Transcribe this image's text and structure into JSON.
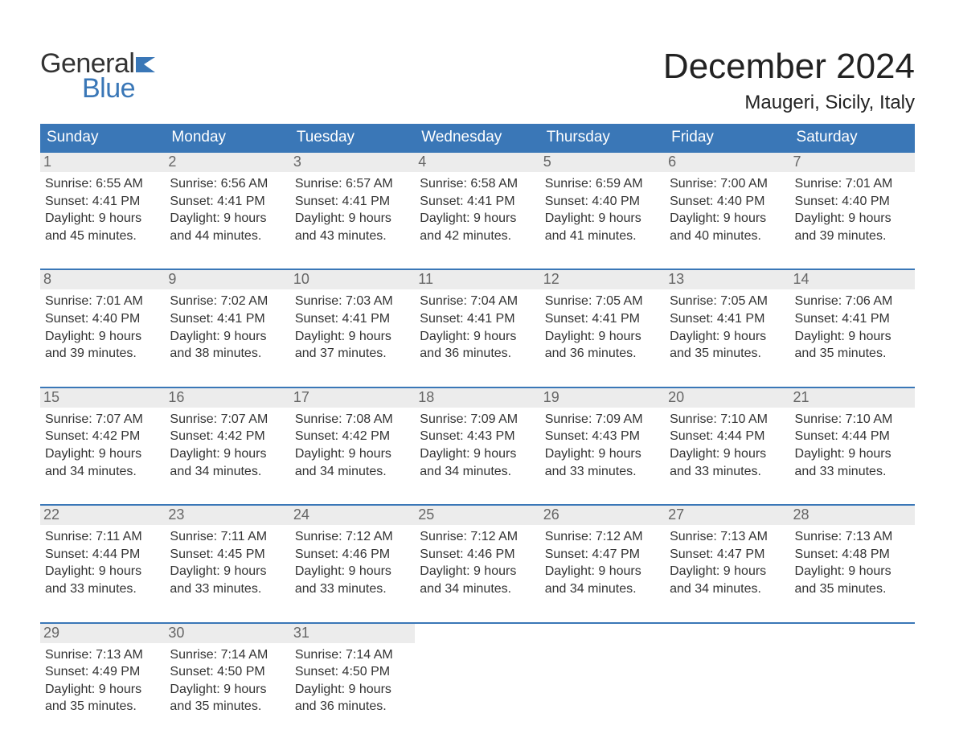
{
  "brand": {
    "word1": "General",
    "word2": "Blue",
    "word1_color": "#333333",
    "word2_color": "#3a77b7",
    "flag_color": "#3a77b7",
    "fontsize": 34
  },
  "title": {
    "month": "December 2024",
    "location": "Maugeri, Sicily, Italy",
    "month_fontsize": 44,
    "location_fontsize": 24,
    "text_color": "#222222"
  },
  "calendar": {
    "header_bg": "#3a77b7",
    "header_text_color": "#ffffff",
    "row_border_color": "#3a77b7",
    "daynum_bg": "#ececec",
    "daynum_color": "#666666",
    "body_text_color": "#333333",
    "background_color": "#ffffff",
    "body_fontsize": 16,
    "daynum_fontsize": 18,
    "header_fontsize": 19,
    "days_of_week": [
      "Sunday",
      "Monday",
      "Tuesday",
      "Wednesday",
      "Thursday",
      "Friday",
      "Saturday"
    ],
    "weeks": [
      [
        {
          "n": "1",
          "sunrise": "Sunrise: 6:55 AM",
          "sunset": "Sunset: 4:41 PM",
          "d1": "Daylight: 9 hours",
          "d2": "and 45 minutes."
        },
        {
          "n": "2",
          "sunrise": "Sunrise: 6:56 AM",
          "sunset": "Sunset: 4:41 PM",
          "d1": "Daylight: 9 hours",
          "d2": "and 44 minutes."
        },
        {
          "n": "3",
          "sunrise": "Sunrise: 6:57 AM",
          "sunset": "Sunset: 4:41 PM",
          "d1": "Daylight: 9 hours",
          "d2": "and 43 minutes."
        },
        {
          "n": "4",
          "sunrise": "Sunrise: 6:58 AM",
          "sunset": "Sunset: 4:41 PM",
          "d1": "Daylight: 9 hours",
          "d2": "and 42 minutes."
        },
        {
          "n": "5",
          "sunrise": "Sunrise: 6:59 AM",
          "sunset": "Sunset: 4:40 PM",
          "d1": "Daylight: 9 hours",
          "d2": "and 41 minutes."
        },
        {
          "n": "6",
          "sunrise": "Sunrise: 7:00 AM",
          "sunset": "Sunset: 4:40 PM",
          "d1": "Daylight: 9 hours",
          "d2": "and 40 minutes."
        },
        {
          "n": "7",
          "sunrise": "Sunrise: 7:01 AM",
          "sunset": "Sunset: 4:40 PM",
          "d1": "Daylight: 9 hours",
          "d2": "and 39 minutes."
        }
      ],
      [
        {
          "n": "8",
          "sunrise": "Sunrise: 7:01 AM",
          "sunset": "Sunset: 4:40 PM",
          "d1": "Daylight: 9 hours",
          "d2": "and 39 minutes."
        },
        {
          "n": "9",
          "sunrise": "Sunrise: 7:02 AM",
          "sunset": "Sunset: 4:41 PM",
          "d1": "Daylight: 9 hours",
          "d2": "and 38 minutes."
        },
        {
          "n": "10",
          "sunrise": "Sunrise: 7:03 AM",
          "sunset": "Sunset: 4:41 PM",
          "d1": "Daylight: 9 hours",
          "d2": "and 37 minutes."
        },
        {
          "n": "11",
          "sunrise": "Sunrise: 7:04 AM",
          "sunset": "Sunset: 4:41 PM",
          "d1": "Daylight: 9 hours",
          "d2": "and 36 minutes."
        },
        {
          "n": "12",
          "sunrise": "Sunrise: 7:05 AM",
          "sunset": "Sunset: 4:41 PM",
          "d1": "Daylight: 9 hours",
          "d2": "and 36 minutes."
        },
        {
          "n": "13",
          "sunrise": "Sunrise: 7:05 AM",
          "sunset": "Sunset: 4:41 PM",
          "d1": "Daylight: 9 hours",
          "d2": "and 35 minutes."
        },
        {
          "n": "14",
          "sunrise": "Sunrise: 7:06 AM",
          "sunset": "Sunset: 4:41 PM",
          "d1": "Daylight: 9 hours",
          "d2": "and 35 minutes."
        }
      ],
      [
        {
          "n": "15",
          "sunrise": "Sunrise: 7:07 AM",
          "sunset": "Sunset: 4:42 PM",
          "d1": "Daylight: 9 hours",
          "d2": "and 34 minutes."
        },
        {
          "n": "16",
          "sunrise": "Sunrise: 7:07 AM",
          "sunset": "Sunset: 4:42 PM",
          "d1": "Daylight: 9 hours",
          "d2": "and 34 minutes."
        },
        {
          "n": "17",
          "sunrise": "Sunrise: 7:08 AM",
          "sunset": "Sunset: 4:42 PM",
          "d1": "Daylight: 9 hours",
          "d2": "and 34 minutes."
        },
        {
          "n": "18",
          "sunrise": "Sunrise: 7:09 AM",
          "sunset": "Sunset: 4:43 PM",
          "d1": "Daylight: 9 hours",
          "d2": "and 34 minutes."
        },
        {
          "n": "19",
          "sunrise": "Sunrise: 7:09 AM",
          "sunset": "Sunset: 4:43 PM",
          "d1": "Daylight: 9 hours",
          "d2": "and 33 minutes."
        },
        {
          "n": "20",
          "sunrise": "Sunrise: 7:10 AM",
          "sunset": "Sunset: 4:44 PM",
          "d1": "Daylight: 9 hours",
          "d2": "and 33 minutes."
        },
        {
          "n": "21",
          "sunrise": "Sunrise: 7:10 AM",
          "sunset": "Sunset: 4:44 PM",
          "d1": "Daylight: 9 hours",
          "d2": "and 33 minutes."
        }
      ],
      [
        {
          "n": "22",
          "sunrise": "Sunrise: 7:11 AM",
          "sunset": "Sunset: 4:44 PM",
          "d1": "Daylight: 9 hours",
          "d2": "and 33 minutes."
        },
        {
          "n": "23",
          "sunrise": "Sunrise: 7:11 AM",
          "sunset": "Sunset: 4:45 PM",
          "d1": "Daylight: 9 hours",
          "d2": "and 33 minutes."
        },
        {
          "n": "24",
          "sunrise": "Sunrise: 7:12 AM",
          "sunset": "Sunset: 4:46 PM",
          "d1": "Daylight: 9 hours",
          "d2": "and 33 minutes."
        },
        {
          "n": "25",
          "sunrise": "Sunrise: 7:12 AM",
          "sunset": "Sunset: 4:46 PM",
          "d1": "Daylight: 9 hours",
          "d2": "and 34 minutes."
        },
        {
          "n": "26",
          "sunrise": "Sunrise: 7:12 AM",
          "sunset": "Sunset: 4:47 PM",
          "d1": "Daylight: 9 hours",
          "d2": "and 34 minutes."
        },
        {
          "n": "27",
          "sunrise": "Sunrise: 7:13 AM",
          "sunset": "Sunset: 4:47 PM",
          "d1": "Daylight: 9 hours",
          "d2": "and 34 minutes."
        },
        {
          "n": "28",
          "sunrise": "Sunrise: 7:13 AM",
          "sunset": "Sunset: 4:48 PM",
          "d1": "Daylight: 9 hours",
          "d2": "and 35 minutes."
        }
      ],
      [
        {
          "n": "29",
          "sunrise": "Sunrise: 7:13 AM",
          "sunset": "Sunset: 4:49 PM",
          "d1": "Daylight: 9 hours",
          "d2": "and 35 minutes."
        },
        {
          "n": "30",
          "sunrise": "Sunrise: 7:14 AM",
          "sunset": "Sunset: 4:50 PM",
          "d1": "Daylight: 9 hours",
          "d2": "and 35 minutes."
        },
        {
          "n": "31",
          "sunrise": "Sunrise: 7:14 AM",
          "sunset": "Sunset: 4:50 PM",
          "d1": "Daylight: 9 hours",
          "d2": "and 36 minutes."
        },
        null,
        null,
        null,
        null
      ]
    ]
  }
}
